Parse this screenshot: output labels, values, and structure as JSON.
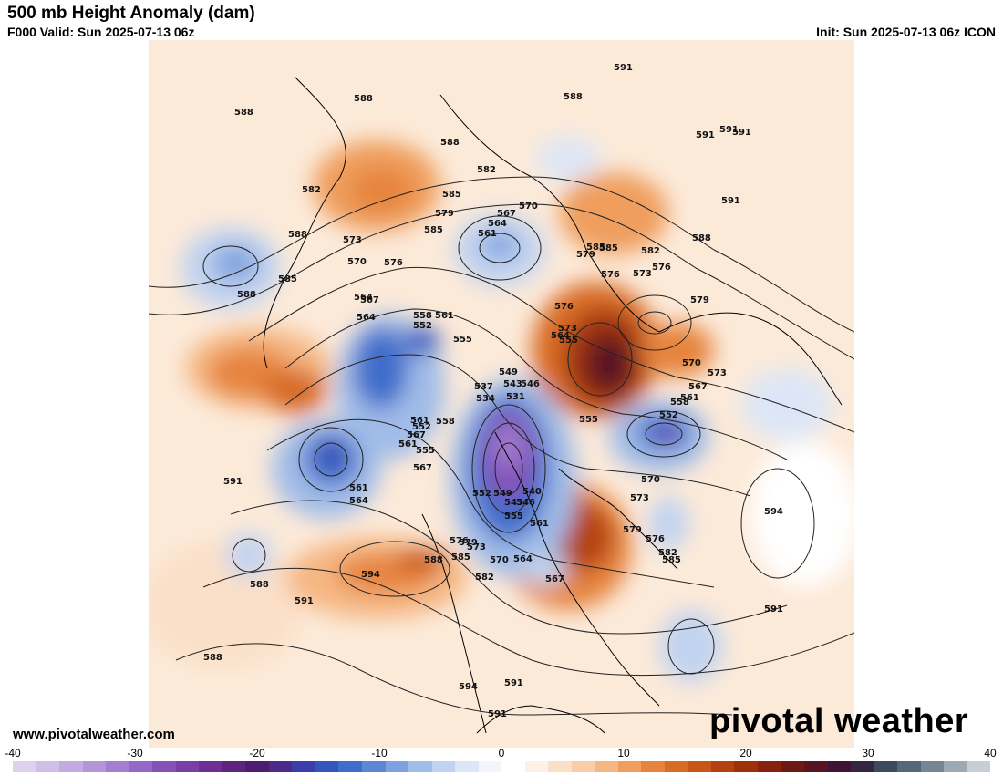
{
  "header": {
    "title": "500 mb Height Anomaly (dam)",
    "valid": "F000 Valid: Sun 2025-07-13 06z",
    "init": "Init: Sun 2025-07-13 06z ICON"
  },
  "footer": {
    "website": "www.pivotalweather.com",
    "brand": "pivotal weather"
  },
  "colorbar": {
    "ticks": [
      "-40",
      "-30",
      "-20",
      "-10",
      "0",
      "10",
      "20",
      "30",
      "40"
    ],
    "colors": [
      "#dcd2ee",
      "#cfbfe8",
      "#c2abe0",
      "#b396d8",
      "#a37fcf",
      "#9368c6",
      "#8651b8",
      "#7a3ea8",
      "#6e2e94",
      "#5f247e",
      "#4e1e6e",
      "#4a2a8a",
      "#3b3ea8",
      "#3455bd",
      "#3f6dca",
      "#5c87d4",
      "#7ea2de",
      "#a0bce8",
      "#c1d3f0",
      "#dde6f6",
      "#f2f5fb",
      "#ffffff",
      "#fdf0e6",
      "#fbe0c8",
      "#f9cda8",
      "#f5b783",
      "#ef9e5d",
      "#e6843d",
      "#d86c25",
      "#c85616",
      "#b5420e",
      "#9e300c",
      "#86220d",
      "#6e1a14",
      "#571521",
      "#3f1432",
      "#322641",
      "#3c4a5b",
      "#55687a",
      "#778693",
      "#9eaab3",
      "#c8ced3"
    ]
  },
  "map": {
    "contour_labels": [
      "588",
      "588",
      "588",
      "591",
      "591",
      "591",
      "588",
      "582",
      "585",
      "588",
      "582",
      "585",
      "579",
      "570",
      "567",
      "564",
      "561",
      "573",
      "570",
      "576",
      "585",
      "588",
      "585",
      "582",
      "576",
      "573",
      "579",
      "591",
      "591",
      "588",
      "585",
      "579",
      "576",
      "564",
      "558",
      "561",
      "552",
      "555",
      "567",
      "564",
      "576",
      "573",
      "549",
      "543",
      "546",
      "537",
      "534",
      "531",
      "555",
      "558",
      "552",
      "561",
      "567",
      "573",
      "570",
      "555",
      "564",
      "558",
      "561",
      "552",
      "567",
      "561",
      "564",
      "555",
      "591",
      "561",
      "567",
      "540",
      "546",
      "543",
      "549",
      "552",
      "555",
      "561",
      "573",
      "570",
      "579",
      "576",
      "582",
      "585",
      "576",
      "579",
      "573",
      "570",
      "564",
      "567",
      "588",
      "585",
      "582",
      "594",
      "591",
      "588",
      "594",
      "591",
      "588",
      "591",
      "594",
      "591"
    ]
  }
}
